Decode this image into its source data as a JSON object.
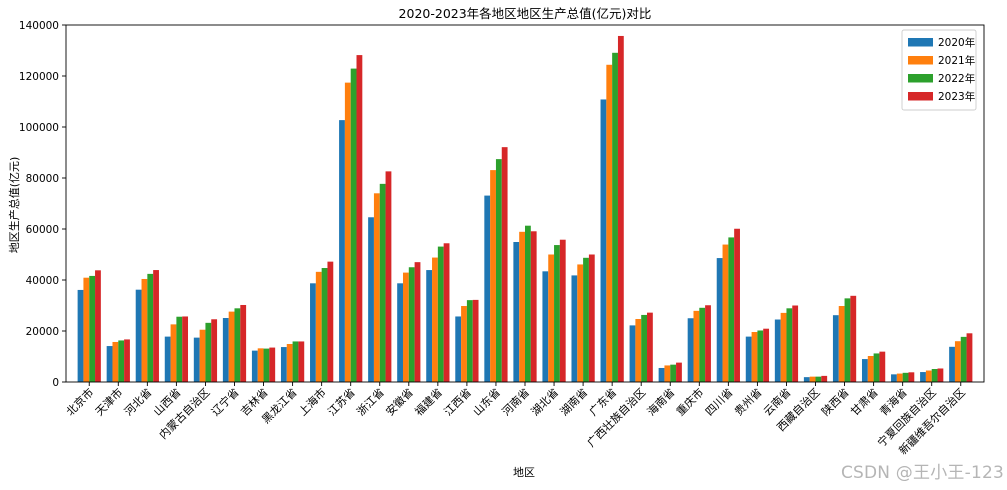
{
  "chart_data": {
    "type": "bar",
    "title": "2020-2023年各地区地区生产总值(亿元)对比",
    "xlabel": "地区",
    "ylabel": "地区生产总值(亿元)",
    "ylim": [
      0,
      140000
    ],
    "yticks": [
      0,
      20000,
      40000,
      60000,
      80000,
      100000,
      120000,
      140000
    ],
    "grid": false,
    "legend_position": "top-right",
    "categories": [
      "北京市",
      "天津市",
      "河北省",
      "山西省",
      "内蒙古自治区",
      "辽宁省",
      "吉林省",
      "黑龙江省",
      "上海市",
      "江苏省",
      "浙江省",
      "安徽省",
      "福建省",
      "江西省",
      "山东省",
      "河南省",
      "湖北省",
      "湖南省",
      "广东省",
      "广西壮族自治区",
      "海南省",
      "重庆市",
      "四川省",
      "贵州省",
      "云南省",
      "西藏自治区",
      "陕西省",
      "甘肃省",
      "青海省",
      "宁夏回族自治区",
      "新疆维吾尔自治区"
    ],
    "series": [
      {
        "name": "2020年",
        "color": "#1f77b4",
        "values": [
          36100,
          14100,
          36200,
          17800,
          17400,
          25100,
          12300,
          13700,
          38700,
          102700,
          64600,
          38700,
          43900,
          25700,
          73100,
          54900,
          43400,
          41800,
          110800,
          22200,
          5500,
          25000,
          48600,
          17800,
          24500,
          1900,
          26200,
          9000,
          3000,
          3900,
          13800
        ]
      },
      {
        "name": "2021年",
        "color": "#ff7f0e",
        "values": [
          40900,
          15700,
          40400,
          22600,
          20500,
          27600,
          13200,
          14900,
          43200,
          117400,
          74000,
          42900,
          48800,
          29800,
          83100,
          58900,
          50000,
          46100,
          124400,
          24700,
          6500,
          27900,
          53900,
          19600,
          27100,
          2100,
          29800,
          10200,
          3300,
          4500,
          16000
        ]
      },
      {
        "name": "2022年",
        "color": "#2ca02c",
        "values": [
          41600,
          16300,
          42400,
          25600,
          23200,
          28900,
          13100,
          15900,
          44700,
          122900,
          77700,
          45000,
          53100,
          32100,
          87400,
          61300,
          53700,
          48700,
          129100,
          26300,
          6800,
          29100,
          56700,
          20200,
          28900,
          2100,
          32800,
          11200,
          3600,
          5100,
          17700
        ]
      },
      {
        "name": "2023年",
        "color": "#d62728",
        "values": [
          43800,
          16700,
          43900,
          25700,
          24600,
          30200,
          13500,
          15900,
          47200,
          128200,
          82600,
          47000,
          54400,
          32200,
          92100,
          59100,
          55800,
          50000,
          135700,
          27200,
          7600,
          30100,
          60100,
          20900,
          30000,
          2400,
          33800,
          11900,
          3800,
          5300,
          19100
        ]
      }
    ]
  },
  "watermark": "CSDN @王小王-123"
}
